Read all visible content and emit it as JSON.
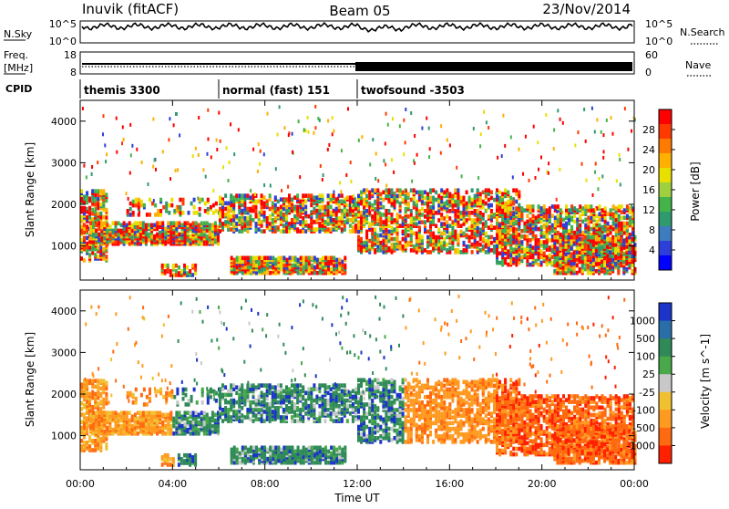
{
  "header": {
    "station": "Inuvik (fitACF)",
    "beam": "Beam 05",
    "date": "23/Nov/2014"
  },
  "strips": {
    "nsky": {
      "label": "N.Sky",
      "ticks": [
        "10^5",
        "10^0"
      ]
    },
    "nsearch": {
      "label": "N.Search",
      "ticks": [
        "10^5",
        "10^0"
      ]
    },
    "freq": {
      "label_line1": "Freq.",
      "label_line2": "[MHz]",
      "ticks": [
        "18",
        "8"
      ]
    },
    "nave": {
      "label": "Nave",
      "ticks": [
        "60",
        "0"
      ]
    },
    "cpid": {
      "label": "CPID",
      "segments": [
        {
          "name": "themis 3300",
          "start_h": 0,
          "end_h": 6
        },
        {
          "name": "normal (fast) 151",
          "start_h": 6,
          "end_h": 12
        },
        {
          "name": "twofsound -3503",
          "start_h": 12,
          "end_h": 24
        }
      ]
    }
  },
  "chart_data": [
    {
      "type": "heatmap",
      "panel": "power",
      "xlabel": "Time UT",
      "ylabel": "Slant Range [km]",
      "xlim_hours": [
        0,
        24
      ],
      "ylim": [
        180,
        4500
      ],
      "y_ticks": [
        1000,
        2000,
        3000,
        4000
      ],
      "colorbar_label": "Power [dB]",
      "colorbar_ticks": [
        "28",
        "24",
        "20",
        "16",
        "12",
        "8",
        "4"
      ],
      "colorbar_colors": [
        "#ff0000",
        "#ff3a00",
        "#ff7a00",
        "#ffb000",
        "#e8e000",
        "#9ed040",
        "#44b44a",
        "#2f9a6e",
        "#3d7cbe",
        "#2c3fd8",
        "#0000ff"
      ]
    },
    {
      "type": "heatmap",
      "panel": "velocity",
      "xlabel": "Time UT",
      "ylabel": "Slant Range [km]",
      "xlim_hours": [
        0,
        24
      ],
      "ylim": [
        180,
        4500
      ],
      "y_ticks": [
        1000,
        2000,
        3000,
        4000
      ],
      "x_ticks": [
        "00:00",
        "04:00",
        "08:00",
        "12:00",
        "16:00",
        "20:00",
        "00:00"
      ],
      "colorbar_label": "Velocity [m s^-1]",
      "colorbar_ticks": [
        "1000",
        "500",
        "100",
        "25",
        "-25",
        "-100",
        "-500",
        "-1000"
      ],
      "colorbar_colors": [
        "#1c34c8",
        "#2a6ea8",
        "#2f8a58",
        "#48a84a",
        "#c8c8c8",
        "#f0c030",
        "#ff9a20",
        "#ff6a10",
        "#ff2000"
      ]
    }
  ]
}
